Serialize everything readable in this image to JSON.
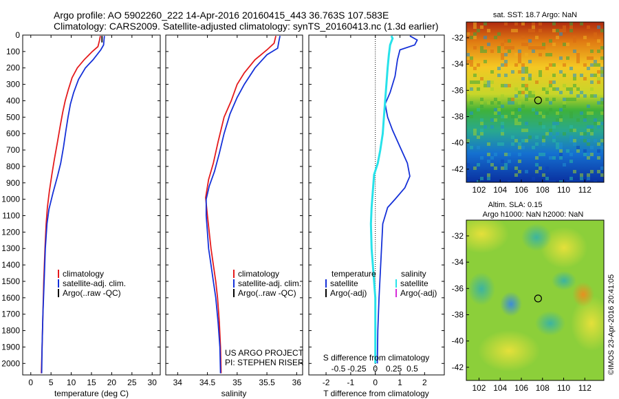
{
  "header": {
    "line1": "Argo profile: AO 5902260_222 14-Apr-2016 20160415_443 36.763S 107.583E",
    "line2": "Climatology: CARS2009. Satellite-adjusted climatology: synTS_20160413.nc (1.3d earlier)"
  },
  "colors": {
    "red": "#e41a1c",
    "blue": "#1430d8",
    "cyan": "#27e2ea",
    "black": "#000000",
    "magenta": "#d62ad8"
  },
  "chart_data": [
    {
      "type": "line",
      "xlabel": "temperature (deg C)",
      "ylabel": "",
      "xlim": [
        -2,
        32
      ],
      "ylim": [
        2070,
        0
      ],
      "xticks": [
        0,
        5,
        10,
        15,
        20,
        25,
        30
      ],
      "yticks": [
        0,
        100,
        200,
        300,
        400,
        500,
        600,
        700,
        800,
        900,
        1000,
        1100,
        1200,
        1300,
        1400,
        1500,
        1600,
        1700,
        1800,
        1900,
        2000
      ],
      "legend": {
        "position": "lower-center",
        "entries": [
          "climatology",
          "satellite-adj. clim.",
          "Argo(..raw -QC)"
        ]
      },
      "series": [
        {
          "name": "climatology",
          "color": "red",
          "points": [
            [
              17.2,
              5
            ],
            [
              17.0,
              30
            ],
            [
              16.6,
              70
            ],
            [
              15.2,
              100
            ],
            [
              13.2,
              150
            ],
            [
              11.5,
              200
            ],
            [
              10.2,
              260
            ],
            [
              9.3,
              330
            ],
            [
              8.5,
              400
            ],
            [
              7.9,
              470
            ],
            [
              7.3,
              550
            ],
            [
              6.6,
              650
            ],
            [
              5.8,
              760
            ],
            [
              5.2,
              850
            ],
            [
              4.6,
              950
            ],
            [
              4.1,
              1050
            ],
            [
              3.8,
              1150
            ],
            [
              3.5,
              1300
            ],
            [
              3.2,
              1500
            ],
            [
              3.0,
              1700
            ],
            [
              2.8,
              1900
            ],
            [
              2.6,
              2060
            ]
          ]
        },
        {
          "name": "satellite-adj. clim.",
          "color": "blue",
          "points": [
            [
              18.2,
              5
            ],
            [
              18.1,
              30
            ],
            [
              18.0,
              60
            ],
            [
              17.3,
              90
            ],
            [
              15.4,
              150
            ],
            [
              13.5,
              200
            ],
            [
              11.8,
              270
            ],
            [
              10.6,
              350
            ],
            [
              9.8,
              420
            ],
            [
              9.2,
              500
            ],
            [
              8.7,
              580
            ],
            [
              8.1,
              680
            ],
            [
              7.4,
              780
            ],
            [
              6.6,
              860
            ],
            [
              5.5,
              960
            ],
            [
              4.5,
              1060
            ],
            [
              4.0,
              1150
            ],
            [
              3.6,
              1300
            ],
            [
              3.3,
              1500
            ],
            [
              3.0,
              1700
            ],
            [
              2.8,
              1900
            ],
            [
              2.7,
              2060
            ]
          ]
        },
        {
          "name": "Argo(..raw -QC)",
          "color": "black",
          "points": [
            [
              17.6,
              5
            ],
            [
              17.6,
              45
            ]
          ]
        }
      ]
    },
    {
      "type": "line",
      "xlabel": "salinity",
      "ylabel": "",
      "xlim": [
        33.8,
        36.1
      ],
      "ylim": [
        2070,
        0
      ],
      "xticks": [
        34,
        34.5,
        35,
        35.5,
        36
      ],
      "legend": {
        "position": "lower-right",
        "entries": [
          "climatology",
          "satellite-adj. clim.",
          "Argo(..raw -QC)"
        ]
      },
      "series": [
        {
          "name": "climatology",
          "color": "red",
          "points": [
            [
              35.65,
              5
            ],
            [
              35.62,
              50
            ],
            [
              35.5,
              90
            ],
            [
              35.3,
              150
            ],
            [
              35.12,
              230
            ],
            [
              35.0,
              300
            ],
            [
              34.9,
              400
            ],
            [
              34.78,
              500
            ],
            [
              34.68,
              650
            ],
            [
              34.6,
              780
            ],
            [
              34.52,
              880
            ],
            [
              34.47,
              990
            ],
            [
              34.5,
              1100
            ],
            [
              34.53,
              1200
            ],
            [
              34.56,
              1300
            ],
            [
              34.6,
              1400
            ],
            [
              34.64,
              1500
            ],
            [
              34.67,
              1600
            ],
            [
              34.7,
              1750
            ],
            [
              34.72,
              1900
            ],
            [
              34.73,
              2060
            ]
          ]
        },
        {
          "name": "satellite-adj. clim.",
          "color": "blue",
          "points": [
            [
              35.72,
              5
            ],
            [
              35.7,
              40
            ],
            [
              35.68,
              80
            ],
            [
              35.5,
              120
            ],
            [
              35.3,
              200
            ],
            [
              35.12,
              300
            ],
            [
              35.0,
              380
            ],
            [
              34.88,
              480
            ],
            [
              34.78,
              600
            ],
            [
              34.7,
              720
            ],
            [
              34.62,
              830
            ],
            [
              34.53,
              920
            ],
            [
              34.48,
              1000
            ],
            [
              34.48,
              1100
            ],
            [
              34.5,
              1200
            ],
            [
              34.52,
              1300
            ],
            [
              34.56,
              1400
            ],
            [
              34.6,
              1500
            ],
            [
              34.64,
              1600
            ],
            [
              34.68,
              1750
            ],
            [
              34.71,
              1900
            ],
            [
              34.72,
              2060
            ]
          ]
        }
      ]
    },
    {
      "type": "line",
      "xlabel": "T difference from climatology",
      "xlabel_top": "S difference from climatology",
      "ylabel": "",
      "xlim": [
        -2.7,
        2.8
      ],
      "ylim": [
        2070,
        0
      ],
      "xticks": [
        -2,
        -1,
        0,
        1,
        2
      ],
      "xticks_top": [
        "-0.5",
        "-0.25",
        "0",
        "0.25",
        "0.5"
      ],
      "legend": {
        "position": "lower-center",
        "temperature_title": "temperature",
        "salinity_title": "salinity",
        "entries": [
          "satellite",
          "Argo(-adj)",
          "satellite",
          "Argo(-adj)"
        ]
      },
      "series": [
        {
          "name": "temperature satellite",
          "color": "blue",
          "points": [
            [
              1.4,
              5
            ],
            [
              1.7,
              30
            ],
            [
              1.6,
              60
            ],
            [
              1.0,
              90
            ],
            [
              0.9,
              150
            ],
            [
              0.8,
              250
            ],
            [
              0.6,
              350
            ],
            [
              0.4,
              420
            ],
            [
              0.5,
              500
            ],
            [
              0.7,
              580
            ],
            [
              1.0,
              680
            ],
            [
              1.3,
              780
            ],
            [
              1.4,
              860
            ],
            [
              1.2,
              930
            ],
            [
              0.8,
              1000
            ],
            [
              0.5,
              1050
            ],
            [
              0.3,
              1150
            ],
            [
              0.25,
              1300
            ],
            [
              0.2,
              1450
            ],
            [
              0.15,
              1600
            ],
            [
              0.1,
              1800
            ],
            [
              0.08,
              2000
            ]
          ]
        },
        {
          "name": "salinity satellite",
          "color": "cyan",
          "points": [
            [
              0.65,
              5
            ],
            [
              0.7,
              20
            ],
            [
              0.6,
              60
            ],
            [
              0.55,
              120
            ],
            [
              0.5,
              200
            ],
            [
              0.45,
              300
            ],
            [
              0.4,
              400
            ],
            [
              0.35,
              500
            ],
            [
              0.3,
              600
            ],
            [
              0.2,
              700
            ],
            [
              0.1,
              780
            ],
            [
              -0.05,
              850
            ],
            [
              -0.1,
              950
            ],
            [
              -0.15,
              1050
            ],
            [
              -0.18,
              1150
            ],
            [
              -0.15,
              1300
            ],
            [
              -0.1,
              1400
            ],
            [
              -0.05,
              1500
            ],
            [
              0.0,
              1600
            ],
            [
              0.0,
              1800
            ],
            [
              0.0,
              2000
            ]
          ]
        }
      ]
    }
  ],
  "maps": {
    "top": {
      "title": "sat. SST: 18.7 Argo: NaN",
      "xticks": [
        "102",
        "104",
        "106",
        "108",
        "110",
        "112"
      ],
      "yticks": [
        "-32",
        "-34",
        "-36",
        "-38",
        "-40",
        "-42"
      ],
      "argo_lon": 107.583,
      "argo_lat": -36.763
    },
    "bottom": {
      "title1": "Altim. SLA: 0.15",
      "title2": "Argo h1000: NaN h2000: NaN",
      "xticks": [
        "102",
        "104",
        "106",
        "108",
        "110",
        "112"
      ],
      "yticks": [
        "-32",
        "-34",
        "-36",
        "-38",
        "-40",
        "-42"
      ],
      "argo_lon": 107.583,
      "argo_lat": -36.763
    }
  },
  "notes": {
    "project": "US ARGO PROJECT",
    "pi": "PI: STEPHEN RISER",
    "stamp": "©IMOS 23-Apr-2016 20:41:05"
  }
}
